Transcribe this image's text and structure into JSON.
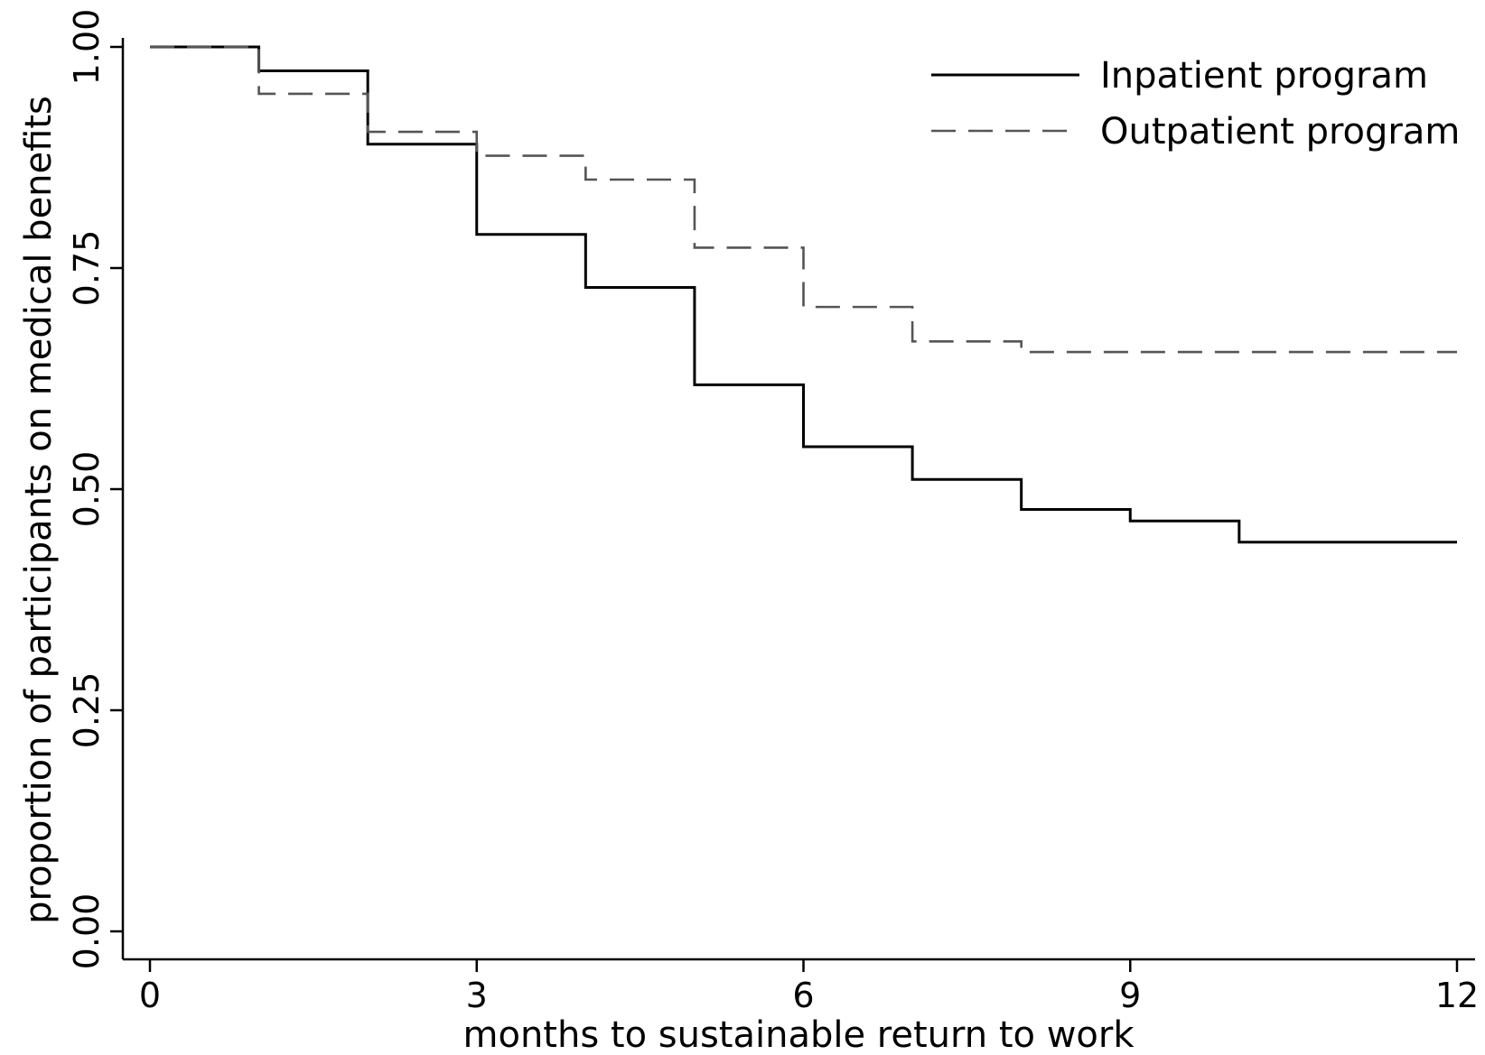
{
  "chart_data": {
    "type": "line",
    "step": true,
    "xlabel": "months to sustainable return to work",
    "ylabel": "proportion of participants on medical benefits",
    "xlim": [
      0,
      12
    ],
    "ylim": [
      0,
      1
    ],
    "x_ticks": [
      0,
      3,
      6,
      9,
      12
    ],
    "x_tick_labels": [
      "0",
      "3",
      "6",
      "9",
      "12"
    ],
    "y_ticks": [
      0,
      0.25,
      0.5,
      0.75,
      1
    ],
    "y_tick_labels": [
      "0.00",
      "0.25",
      "0.50",
      "0.75",
      "1.00"
    ],
    "grid": false,
    "legend_position": "top-right",
    "series": [
      {
        "name": "Inpatient program",
        "line_style": "solid",
        "color": "#000000",
        "x": [
          0,
          1,
          2,
          3,
          4,
          5,
          6,
          7,
          8,
          9,
          10,
          12
        ],
        "y": [
          1.0,
          0.973,
          0.89,
          0.788,
          0.728,
          0.618,
          0.548,
          0.511,
          0.477,
          0.464,
          0.44,
          0.44
        ]
      },
      {
        "name": "Outpatient program",
        "line_style": "dashed",
        "color": "#555555",
        "x": [
          0,
          1,
          2,
          3,
          4,
          5,
          6,
          7,
          8,
          12
        ],
        "y": [
          1.0,
          0.947,
          0.904,
          0.877,
          0.85,
          0.773,
          0.706,
          0.667,
          0.655,
          0.655
        ]
      }
    ]
  }
}
